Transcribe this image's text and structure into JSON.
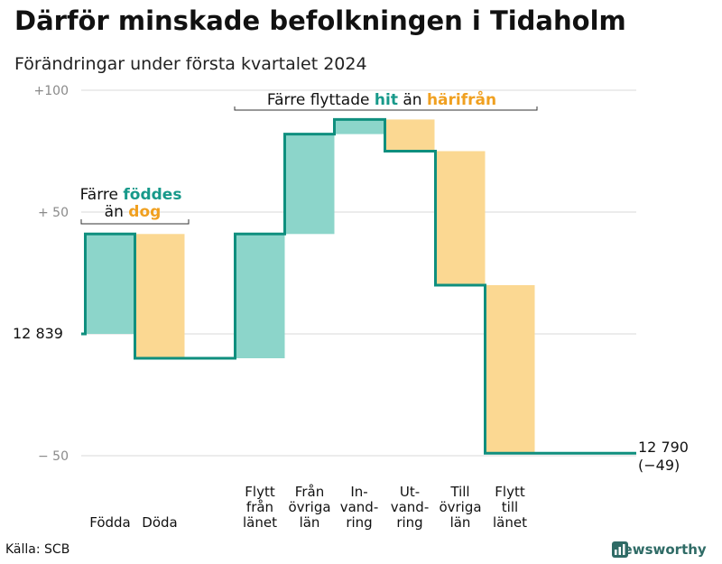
{
  "title": "Därför minskade befolkningen i Tidaholm",
  "subtitle": "Förändringar under första kvartalet 2024",
  "source": "Källa: SCB",
  "brand": "Newsworthy",
  "colors": {
    "teal": "#8cd5ca",
    "orange": "#fbd892",
    "line": "#0f8f7e",
    "teal_text": "#17998a",
    "orange_text": "#f0a020",
    "grid": "#d9d9d9",
    "axis_text": "#8a8a8a"
  },
  "annotations": {
    "birth": {
      "line1": "Färre",
      "line1_hl": "föddes",
      "line2": "än",
      "line2_hl": "dog"
    },
    "migration": {
      "prefix": "Färre flyttade",
      "hl1": "hit",
      "mid": "än",
      "hl2": "härifrån"
    }
  },
  "start_label": "12  839",
  "end_label": {
    "line1": "12 790",
    "line2": "(−49)"
  },
  "chart_data": {
    "type": "waterfall",
    "title": "Därför minskade befolkningen i Tidaholm",
    "subtitle": "Förändringar under första kvartalet 2024",
    "baseline": 12839,
    "end_value": 12790,
    "net_change": -49,
    "ylim": [
      -50,
      100
    ],
    "yticks": [
      {
        "value": 100,
        "label": "+100"
      },
      {
        "value": 50,
        "label": "+  50"
      },
      {
        "value": 0,
        "label": ""
      },
      {
        "value": -50,
        "label": "−  50"
      }
    ],
    "bars": [
      {
        "category": "Födda",
        "label": [
          "Födda"
        ],
        "type": "in",
        "start": 0,
        "end": 41
      },
      {
        "category": "Döda",
        "label": [
          "Döda"
        ],
        "type": "out",
        "start": 41,
        "end": -10
      },
      {
        "category": "Flytt från länet",
        "label": [
          "Flytt",
          "från",
          "länet"
        ],
        "type": "in",
        "start": -10,
        "end": 41
      },
      {
        "category": "Från övriga län",
        "label": [
          "Från",
          "övriga",
          "län"
        ],
        "type": "in",
        "start": 41,
        "end": 82
      },
      {
        "category": "Invandring",
        "label": [
          "In-",
          "vand-",
          "ring"
        ],
        "type": "in",
        "start": 82,
        "end": 88
      },
      {
        "category": "Utvandring",
        "label": [
          "Ut-",
          "vand-",
          "ring"
        ],
        "type": "out",
        "start": 88,
        "end": 75
      },
      {
        "category": "Till övriga län",
        "label": [
          "Till",
          "övriga",
          "län"
        ],
        "type": "out",
        "start": 75,
        "end": 20
      },
      {
        "category": "Flytt till länet",
        "label": [
          "Flytt",
          "till",
          "länet"
        ],
        "type": "out",
        "start": 20,
        "end": -49
      }
    ]
  }
}
